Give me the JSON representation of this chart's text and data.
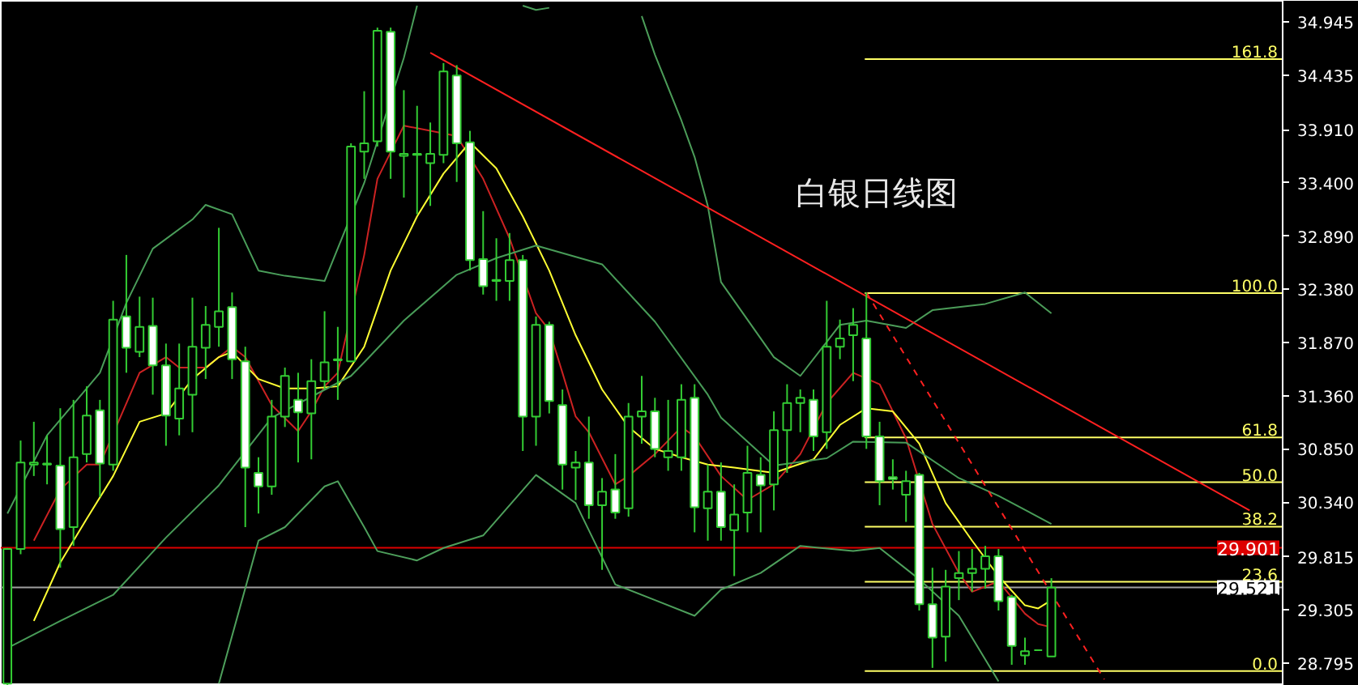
{
  "chart_data": {
    "type": "candlestick",
    "color": "#33cc33",
    "tick_labels": "y",
    "annotations": [
      "白银日线图",
      {
        "text": "161.8",
        "y": 34.588
      },
      {
        "text": "100.0",
        "y": 32.344
      },
      {
        "text": "61.8",
        "y": 30.96
      },
      {
        "text": "50.0",
        "y": 30.53
      },
      {
        "text": "38.2",
        "y": 30.104
      },
      {
        "text": "23.6",
        "y": 29.575
      },
      {
        "text": "0.0",
        "y": 28.72
      }
    ],
    "categories": [
      null,
      null,
      null,
      null,
      null,
      null,
      null,
      null,
      null,
      null,
      null,
      null,
      null,
      null,
      null,
      null,
      null,
      null,
      null,
      null,
      null,
      null,
      null,
      null,
      null,
      null,
      null,
      null,
      null,
      null,
      null,
      null,
      null,
      null,
      null,
      null,
      null,
      null,
      null,
      null,
      null,
      null,
      null,
      null,
      null,
      null,
      null,
      null,
      null,
      null,
      null,
      null,
      null,
      null,
      null,
      null,
      null,
      null,
      null,
      null,
      null,
      null,
      null,
      null,
      null,
      null,
      null,
      null,
      null,
      null,
      null,
      null,
      null,
      null,
      null,
      null,
      null,
      null,
      null,
      null,
      null,
      null,
      null,
      null,
      null,
      null,
      null,
      null,
      null,
      null,
      null,
      null,
      null,
      null,
      null,
      null,
      null
    ],
    "ohlc": [
      [
        28.6,
        29.9,
        28.58,
        29.89
      ],
      [
        29.89,
        30.93,
        29.84,
        30.72
      ],
      [
        30.7,
        31.11,
        30.59,
        30.72
      ],
      [
        30.7,
        30.98,
        30.51,
        30.71
      ],
      [
        30.69,
        31.24,
        29.71,
        30.08
      ],
      [
        30.1,
        31.32,
        29.92,
        30.77
      ],
      [
        30.8,
        31.45,
        30.72,
        31.17
      ],
      [
        31.22,
        31.32,
        30.39,
        30.71
      ],
      [
        30.7,
        32.27,
        30.64,
        32.09
      ],
      [
        32.12,
        32.71,
        31.58,
        31.82
      ],
      [
        31.78,
        32.31,
        31.73,
        32.02
      ],
      [
        32.03,
        32.3,
        31.37,
        31.65
      ],
      [
        31.65,
        31.86,
        30.88,
        31.17
      ],
      [
        31.14,
        31.86,
        30.98,
        31.43
      ],
      [
        31.37,
        32.3,
        31.01,
        31.83
      ],
      [
        31.82,
        32.22,
        31.52,
        32.04
      ],
      [
        32.02,
        32.97,
        31.83,
        32.17
      ],
      [
        32.21,
        32.35,
        31.52,
        31.71
      ],
      [
        31.69,
        31.83,
        30.1,
        30.67
      ],
      [
        30.62,
        30.77,
        30.23,
        30.49
      ],
      [
        30.49,
        31.32,
        30.41,
        31.16
      ],
      [
        31.16,
        31.63,
        31.06,
        31.55
      ],
      [
        31.32,
        31.58,
        30.72,
        31.2
      ],
      [
        31.19,
        31.71,
        30.75,
        31.5
      ],
      [
        31.5,
        32.17,
        31.42,
        31.68
      ],
      [
        31.7,
        32.02,
        31.32,
        31.71
      ],
      [
        31.69,
        33.78,
        31.68,
        33.75
      ],
      [
        33.7,
        34.28,
        33.44,
        33.78
      ],
      [
        33.8,
        34.89,
        33.75,
        34.86
      ],
      [
        34.85,
        34.89,
        33.44,
        33.7
      ],
      [
        33.66,
        34.29,
        33.26,
        33.68
      ],
      [
        33.67,
        34.14,
        33.1,
        33.68
      ],
      [
        33.59,
        33.98,
        33.18,
        33.68
      ],
      [
        33.67,
        34.55,
        33.59,
        34.47
      ],
      [
        34.43,
        34.53,
        33.41,
        33.78
      ],
      [
        33.79,
        33.9,
        32.56,
        32.66
      ],
      [
        32.67,
        33.13,
        32.33,
        32.41
      ],
      [
        32.46,
        32.87,
        32.27,
        32.47
      ],
      [
        32.46,
        32.92,
        32.27,
        32.66
      ],
      [
        32.66,
        32.71,
        30.83,
        31.16
      ],
      [
        31.16,
        32.12,
        30.88,
        32.04
      ],
      [
        32.04,
        32.07,
        31.19,
        31.31
      ],
      [
        31.27,
        31.42,
        30.46,
        30.7
      ],
      [
        30.67,
        30.83,
        30.36,
        30.72
      ],
      [
        30.72,
        31.16,
        30.18,
        30.31
      ],
      [
        30.31,
        30.57,
        29.69,
        30.44
      ],
      [
        30.46,
        30.8,
        30.18,
        30.24
      ],
      [
        30.28,
        31.29,
        30.2,
        31.16
      ],
      [
        31.16,
        31.55,
        30.9,
        31.21
      ],
      [
        31.21,
        31.34,
        30.77,
        30.85
      ],
      [
        30.77,
        31.32,
        30.64,
        30.83
      ],
      [
        30.77,
        31.47,
        30.64,
        31.32
      ],
      [
        31.34,
        31.47,
        30.05,
        30.29
      ],
      [
        30.28,
        30.7,
        29.97,
        30.44
      ],
      [
        30.44,
        30.72,
        29.97,
        30.1
      ],
      [
        30.07,
        30.51,
        29.63,
        30.22
      ],
      [
        30.24,
        30.88,
        30.05,
        30.62
      ],
      [
        30.6,
        30.77,
        30.05,
        30.5
      ],
      [
        30.51,
        31.21,
        30.26,
        31.03
      ],
      [
        31.03,
        31.47,
        30.62,
        31.29
      ],
      [
        31.29,
        31.42,
        31.01,
        31.34
      ],
      [
        31.32,
        31.42,
        30.83,
        30.97
      ],
      [
        31.01,
        32.27,
        30.85,
        31.83
      ],
      [
        31.83,
        32.09,
        31.71,
        31.91
      ],
      [
        31.94,
        32.2,
        31.5,
        32.04
      ],
      [
        31.91,
        32.35,
        30.85,
        30.97
      ],
      [
        30.97,
        31.11,
        30.31,
        30.54
      ],
      [
        30.58,
        30.75,
        30.46,
        30.56
      ],
      [
        30.41,
        30.64,
        30.15,
        30.54
      ],
      [
        30.6,
        30.62,
        29.3,
        29.36
      ],
      [
        29.36,
        29.71,
        28.75,
        29.04
      ],
      [
        29.05,
        29.69,
        28.81,
        29.53
      ],
      [
        29.61,
        29.87,
        29.4,
        29.66
      ],
      [
        29.66,
        29.89,
        29.48,
        29.7
      ],
      [
        29.7,
        29.92,
        29.51,
        29.82
      ],
      [
        29.82,
        29.89,
        29.3,
        29.39
      ],
      [
        29.43,
        29.45,
        28.78,
        28.96
      ],
      [
        28.87,
        29.04,
        28.78,
        28.91
      ],
      [
        28.92,
        28.92,
        28.92,
        28.92
      ],
      [
        28.86,
        29.61,
        28.86,
        29.52
      ],
      null,
      null,
      null,
      null,
      null,
      null,
      null,
      null,
      null,
      null,
      null,
      null,
      null,
      null,
      null,
      null,
      null
    ],
    "series": [
      {
        "type": "line",
        "color": "#cc2222",
        "values": [
          null,
          null,
          29.97,
          null,
          30.46,
          null,
          30.7,
          30.7,
          null,
          null,
          31.58,
          null,
          31.73,
          31.63,
          null,
          31.63,
          null,
          31.83,
          31.73,
          null,
          31.27,
          null,
          31.02,
          31.21,
          31.45,
          31.58,
          null,
          32.71,
          33.44,
          null,
          33.95,
          null,
          33.9,
          null,
          33.85,
          null,
          33.44,
          null,
          32.87,
          null,
          32.15,
          31.99,
          31.58,
          31.16,
          31.01,
          null,
          30.51,
          30.59,
          null,
          30.8,
          null,
          31.06,
          30.97,
          null,
          30.59,
          null,
          30.36,
          null,
          30.51,
          null,
          30.8,
          null,
          31.29,
          null,
          31.58,
          null,
          31.47,
          null,
          30.95,
          null,
          30.13,
          null,
          29.66,
          29.48,
          null,
          29.58,
          null,
          29.27,
          29.17,
          29.14,
          null,
          null,
          null,
          null,
          null,
          null,
          null,
          null,
          null,
          null,
          null,
          null,
          null,
          null,
          null,
          null,
          null
        ]
      },
      {
        "type": "line",
        "color": "#ffff33",
        "values": [
          null,
          null,
          29.2,
          null,
          29.76,
          null,
          30.18,
          null,
          30.59,
          null,
          31.11,
          null,
          31.19,
          null,
          31.52,
          null,
          31.73,
          31.78,
          null,
          31.52,
          null,
          31.43,
          null,
          31.43,
          null,
          31.45,
          null,
          31.83,
          null,
          32.56,
          null,
          33.08,
          null,
          33.49,
          null,
          33.79,
          null,
          33.54,
          null,
          33.08,
          null,
          32.56,
          null,
          31.94,
          null,
          31.42,
          null,
          31.06,
          null,
          30.85,
          null,
          30.77,
          null,
          30.7,
          null,
          30.67,
          null,
          null,
          30.62,
          null,
          null,
          30.75,
          null,
          31.08,
          null,
          31.24,
          null,
          31.21,
          null,
          30.9,
          null,
          30.33,
          null,
          29.97,
          null,
          29.63,
          null,
          29.35,
          29.32,
          29.4,
          null,
          null,
          null,
          null,
          null,
          null,
          null,
          null,
          null,
          null,
          null,
          null,
          null,
          null,
          null,
          null,
          null
        ]
      },
      {
        "type": "line",
        "color": "#4a9e5a",
        "values": [
          30.23,
          null,
          null,
          30.98,
          null,
          null,
          null,
          31.58,
          null,
          32.25,
          null,
          32.77,
          null,
          null,
          33.05,
          33.19,
          null,
          33.1,
          null,
          32.56,
          null,
          32.51,
          null,
          null,
          32.46,
          null,
          null,
          33.4,
          null,
          null,
          34.6,
          35.1,
          null,
          null,
          null,
          null,
          null,
          null,
          null,
          null,
          null,
          null,
          null,
          null,
          null,
          null,
          null,
          null,
          null,
          null,
          null,
          null,
          null,
          null,
          null,
          null,
          null,
          null,
          null,
          null,
          null,
          null,
          null,
          null,
          null,
          null,
          null,
          null,
          null,
          null,
          null,
          null,
          null,
          null,
          null,
          null,
          null,
          null,
          null,
          null,
          null,
          null,
          null,
          null,
          null,
          null,
          null,
          null,
          null,
          null,
          null,
          null,
          null,
          null,
          null,
          null,
          null
        ]
      },
      {
        "type": "line",
        "color": "#4b9f5b",
        "values": [
          null,
          null,
          null,
          null,
          null,
          null,
          null,
          null,
          null,
          null,
          null,
          null,
          null,
          null,
          null,
          null,
          null,
          null,
          null,
          null,
          null,
          null,
          null,
          null,
          null,
          null,
          null,
          null,
          null,
          null,
          null,
          null,
          null,
          null,
          null,
          null,
          null,
          null,
          null,
          35.1,
          35.06,
          35.08,
          null,
          null,
          null,
          null,
          null,
          null,
          null,
          null,
          null,
          null,
          null,
          null,
          null,
          null,
          null,
          null,
          null,
          null,
          null,
          null,
          null,
          null,
          null,
          null,
          null,
          null,
          null,
          null,
          null,
          null,
          null,
          null,
          null,
          null,
          null,
          null,
          null,
          null,
          null,
          null,
          null,
          null,
          null,
          null,
          null,
          null,
          null,
          null,
          null,
          null,
          null,
          null,
          null,
          null,
          null
        ]
      },
      {
        "type": "line",
        "color": "#4c9d59",
        "values": [
          null,
          null,
          null,
          null,
          null,
          null,
          null,
          null,
          null,
          null,
          null,
          null,
          null,
          null,
          null,
          null,
          null,
          null,
          null,
          null,
          null,
          null,
          null,
          null,
          null,
          null,
          null,
          null,
          null,
          null,
          null,
          null,
          null,
          null,
          null,
          null,
          null,
          null,
          null,
          null,
          null,
          null,
          null,
          null,
          null,
          null,
          null,
          null,
          35.0,
          34.63,
          null,
          34.0,
          33.65,
          33.18,
          32.45,
          null,
          null,
          null,
          31.73,
          null,
          31.55,
          null,
          null,
          32.04,
          null,
          32.08,
          null,
          null,
          32.01,
          null,
          32.18,
          null,
          null,
          null,
          32.24,
          null,
          null,
          32.35,
          null,
          32.15,
          null,
          null,
          null,
          null,
          null,
          null,
          null,
          null,
          null,
          null,
          null,
          null,
          null,
          null,
          null,
          null,
          null
        ]
      },
      {
        "type": "line",
        "color": "#489c58",
        "values": [
          28.94,
          null,
          null,
          null,
          29.2,
          null,
          null,
          null,
          29.45,
          null,
          null,
          null,
          30.0,
          null,
          null,
          null,
          30.5,
          null,
          null,
          null,
          31.15,
          null,
          null,
          31.35,
          null,
          null,
          31.55,
          31.68,
          null,
          null,
          32.08,
          null,
          null,
          null,
          32.52,
          null,
          null,
          32.68,
          null,
          null,
          32.8,
          null,
          null,
          null,
          null,
          32.62,
          null,
          null,
          null,
          32.07,
          null,
          null,
          null,
          31.37,
          31.15,
          null,
          null,
          null,
          30.69,
          null,
          null,
          null,
          30.76,
          null,
          30.92,
          null,
          null,
          null,
          30.91,
          null,
          null,
          null,
          30.57,
          null,
          null,
          30.4,
          null,
          null,
          null,
          30.13,
          null,
          null,
          null,
          null,
          null,
          null,
          null,
          null,
          null,
          null,
          null,
          null,
          null,
          null,
          null,
          null,
          null
        ]
      },
      {
        "type": "line",
        "color": "#4ea05c",
        "values": [
          null,
          null,
          null,
          null,
          null,
          null,
          null,
          null,
          null,
          null,
          null,
          null,
          null,
          null,
          null,
          null,
          28.6,
          null,
          null,
          29.97,
          null,
          30.1,
          null,
          null,
          30.49,
          30.54,
          null,
          30.1,
          29.87,
          null,
          null,
          29.78,
          null,
          29.9,
          null,
          null,
          30.02,
          null,
          null,
          null,
          30.6,
          null,
          null,
          30.33,
          null,
          null,
          29.55,
          null,
          null,
          29.4,
          null,
          null,
          29.25,
          null,
          29.5,
          null,
          null,
          29.66,
          null,
          null,
          29.92,
          null,
          null,
          null,
          29.87,
          null,
          29.9,
          null,
          null,
          29.6,
          null,
          null,
          29.25,
          null,
          null,
          28.62,
          null,
          null,
          null,
          null,
          null,
          null,
          null,
          null,
          null,
          null,
          null,
          null,
          null,
          null,
          null,
          null,
          null,
          null,
          null,
          null,
          null
        ]
      },
      {
        "type": "line",
        "color": "#ff2020",
        "values": [
          null,
          null,
          null,
          null,
          null,
          null,
          null,
          null,
          null,
          null,
          null,
          null,
          null,
          null,
          null,
          null,
          null,
          null,
          null,
          null,
          null,
          null,
          null,
          null,
          null,
          null,
          null,
          null,
          null,
          null,
          null,
          null,
          34.65,
          null,
          null,
          null,
          null,
          null,
          null,
          null,
          null,
          null,
          null,
          null,
          null,
          null,
          null,
          null,
          null,
          null,
          null,
          null,
          null,
          null,
          null,
          null,
          null,
          null,
          null,
          null,
          null,
          null,
          null,
          null,
          null,
          null,
          null,
          null,
          null,
          null,
          null,
          null,
          null,
          null,
          null,
          null,
          null,
          null,
          null,
          null,
          null,
          null,
          null,
          null,
          null,
          null,
          null,
          null,
          null,
          null,
          null,
          null,
          null,
          null,
          30.26,
          null,
          null
        ]
      },
      {
        "type": "line",
        "color": "#ff2020",
        "line_style": "dashed",
        "values": [
          null,
          null,
          null,
          null,
          null,
          null,
          null,
          null,
          null,
          null,
          null,
          null,
          null,
          null,
          null,
          null,
          null,
          null,
          null,
          null,
          null,
          null,
          null,
          null,
          null,
          null,
          null,
          null,
          null,
          null,
          null,
          null,
          null,
          null,
          null,
          null,
          null,
          null,
          null,
          null,
          null,
          null,
          null,
          null,
          null,
          null,
          null,
          null,
          null,
          null,
          null,
          null,
          null,
          null,
          null,
          null,
          null,
          null,
          null,
          null,
          null,
          null,
          null,
          null,
          null,
          32.35,
          null,
          null,
          null,
          null,
          null,
          null,
          null,
          null,
          null,
          null,
          null,
          null,
          null,
          null,
          null,
          null,
          null,
          28.64,
          null,
          null,
          null,
          null,
          null,
          null,
          null,
          null,
          null,
          null,
          null,
          null,
          null
        ]
      }
    ],
    "ylim": [
      28.578,
      35.147
    ],
    "yticks": [
      34.945,
      34.435,
      {
        "value": 33.91,
        "label": "33.910"
      },
      {
        "value": 33.4,
        "label": "33.400"
      },
      {
        "value": 32.89,
        "label": "32.890"
      },
      {
        "value": 32.38,
        "label": "32.380"
      },
      {
        "value": 31.87,
        "label": "31.870"
      },
      {
        "value": 31.36,
        "label": "31.360"
      },
      {
        "value": 30.85,
        "label": "30.850"
      },
      {
        "value": 30.34,
        "label": "30.340"
      },
      29.815,
      29.305,
      28.795
    ],
    "ref_lines": [
      {
        "axis": "y",
        "value": 29.901,
        "label": "29.901",
        "color": "#dd0000"
      },
      {
        "axis": "y",
        "value": 29.521,
        "label": "29.521",
        "color": "#a0a0a0"
      },
      {
        "axis": "y",
        "value": 34.588,
        "color": "#ffff66"
      },
      {
        "axis": "y",
        "value": 32.344,
        "color": "#ffff66"
      },
      {
        "axis": "y",
        "value": 30.96,
        "color": "#ffff66"
      },
      {
        "axis": "y",
        "value": 30.53,
        "color": "#ffff66"
      },
      {
        "axis": "y",
        "value": 30.104,
        "color": "#ffff66"
      },
      {
        "axis": "y",
        "value": 29.575,
        "color": "#ffff66"
      },
      {
        "axis": "y",
        "value": 28.72,
        "color": "#ffff66"
      }
    ]
  }
}
